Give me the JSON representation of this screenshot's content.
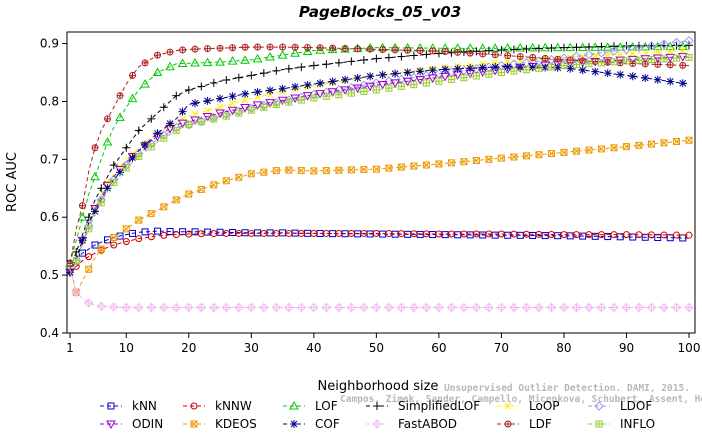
{
  "chart_data": {
    "type": "line",
    "title": "PageBlocks_05_v03",
    "xlabel": "Neighborhood size",
    "ylabel": "ROC AUC",
    "xlim": [
      1,
      100
    ],
    "ylim": [
      0.4,
      0.92
    ],
    "xticks": [
      1,
      10,
      20,
      30,
      40,
      50,
      60,
      70,
      80,
      90,
      100
    ],
    "yticks": [
      0.4,
      0.5,
      0.6,
      0.7,
      0.8,
      0.9
    ],
    "x_anchors": [
      1,
      2,
      3,
      4,
      5,
      6,
      7,
      8,
      10,
      12,
      15,
      18,
      20,
      25,
      30,
      35,
      40,
      50,
      60,
      70,
      80,
      90,
      100
    ],
    "series": [
      {
        "name": "kNN",
        "color": "#0000cc",
        "marker": "square",
        "values": [
          0.52,
          0.53,
          0.538,
          0.545,
          0.552,
          0.557,
          0.561,
          0.565,
          0.57,
          0.574,
          0.576,
          0.575,
          0.575,
          0.574,
          0.573,
          0.573,
          0.572,
          0.571,
          0.57,
          0.569,
          0.568,
          0.566,
          0.564
        ]
      },
      {
        "name": "kNNW",
        "color": "#cc0000",
        "marker": "circle",
        "values": [
          0.505,
          0.515,
          0.525,
          0.532,
          0.538,
          0.543,
          0.548,
          0.552,
          0.558,
          0.563,
          0.568,
          0.57,
          0.571,
          0.572,
          0.572,
          0.572,
          0.572,
          0.572,
          0.571,
          0.571,
          0.57,
          0.57,
          0.569
        ]
      },
      {
        "name": "LOF",
        "color": "#00cc00",
        "marker": "triangle",
        "values": [
          0.52,
          0.56,
          0.6,
          0.64,
          0.67,
          0.7,
          0.73,
          0.755,
          0.79,
          0.82,
          0.85,
          0.865,
          0.866,
          0.868,
          0.872,
          0.88,
          0.888,
          0.893,
          0.892,
          0.892,
          0.893,
          0.894,
          0.895
        ]
      },
      {
        "name": "SimplifiedLOF",
        "color": "#000000",
        "marker": "plus",
        "values": [
          0.51,
          0.54,
          0.57,
          0.6,
          0.63,
          0.65,
          0.67,
          0.69,
          0.72,
          0.75,
          0.78,
          0.81,
          0.82,
          0.835,
          0.845,
          0.855,
          0.862,
          0.874,
          0.883,
          0.889,
          0.893,
          0.896,
          0.897
        ]
      },
      {
        "name": "LoOP",
        "color": "#ffee00",
        "marker": "cross",
        "values": [
          0.505,
          0.53,
          0.56,
          0.59,
          0.615,
          0.64,
          0.66,
          0.675,
          0.7,
          0.72,
          0.745,
          0.765,
          0.775,
          0.79,
          0.805,
          0.817,
          0.827,
          0.845,
          0.858,
          0.868,
          0.876,
          0.882,
          0.888
        ]
      },
      {
        "name": "LDOF",
        "color": "#9999ee",
        "marker": "diamond",
        "values": [
          0.5,
          0.525,
          0.555,
          0.585,
          0.61,
          0.63,
          0.65,
          0.665,
          0.69,
          0.71,
          0.735,
          0.755,
          0.76,
          0.775,
          0.788,
          0.8,
          0.812,
          0.832,
          0.848,
          0.862,
          0.875,
          0.89,
          0.905
        ]
      },
      {
        "name": "ODIN",
        "color": "#9900cc",
        "marker": "triangle-down",
        "values": [
          0.505,
          0.53,
          0.56,
          0.59,
          0.615,
          0.635,
          0.655,
          0.67,
          0.695,
          0.715,
          0.74,
          0.76,
          0.765,
          0.78,
          0.792,
          0.802,
          0.812,
          0.828,
          0.842,
          0.855,
          0.866,
          0.872,
          0.878
        ]
      },
      {
        "name": "KDEOS",
        "color": "#ee9900",
        "marker": "square-x",
        "values": [
          0.515,
          0.47,
          0.49,
          0.51,
          0.53,
          0.545,
          0.555,
          0.565,
          0.58,
          0.595,
          0.612,
          0.63,
          0.64,
          0.66,
          0.675,
          0.682,
          0.68,
          0.683,
          0.692,
          0.702,
          0.712,
          0.722,
          0.733
        ]
      },
      {
        "name": "COF",
        "color": "#000088",
        "marker": "asterisk",
        "values": [
          0.505,
          0.53,
          0.56,
          0.59,
          0.61,
          0.63,
          0.65,
          0.665,
          0.69,
          0.715,
          0.745,
          0.77,
          0.795,
          0.805,
          0.815,
          0.822,
          0.83,
          0.845,
          0.855,
          0.86,
          0.858,
          0.845,
          0.83
        ]
      },
      {
        "name": "FastABOD",
        "color": "#f2b8f2",
        "marker": "diamond-plus",
        "values": [
          0.51,
          0.47,
          0.46,
          0.452,
          0.448,
          0.446,
          0.445,
          0.445,
          0.444,
          0.444,
          0.444,
          0.444,
          0.444,
          0.444,
          0.444,
          0.444,
          0.444,
          0.444,
          0.444,
          0.444,
          0.444,
          0.444,
          0.444
        ]
      },
      {
        "name": "LDF",
        "color": "#aa2222",
        "marker": "circle-plus",
        "values": [
          0.52,
          0.58,
          0.62,
          0.68,
          0.72,
          0.75,
          0.77,
          0.79,
          0.83,
          0.86,
          0.88,
          0.888,
          0.89,
          0.892,
          0.894,
          0.894,
          0.893,
          0.89,
          0.887,
          0.88,
          0.872,
          0.866,
          0.862
        ]
      },
      {
        "name": "INFLO",
        "color": "#99cc33",
        "marker": "square-cross",
        "values": [
          0.5,
          0.525,
          0.552,
          0.58,
          0.605,
          0.625,
          0.645,
          0.66,
          0.685,
          0.705,
          0.73,
          0.75,
          0.76,
          0.772,
          0.785,
          0.797,
          0.806,
          0.82,
          0.835,
          0.85,
          0.862,
          0.87,
          0.876
        ]
      }
    ],
    "legend_order": [
      "kNN",
      "kNNW",
      "LOF",
      "SimplifiedLOF",
      "LoOP",
      "LDOF",
      "ODIN",
      "KDEOS",
      "COF",
      "FastABOD",
      "LDF",
      "INFLO"
    ],
    "legend_placement": "bottom",
    "grid": false
  },
  "watermark": {
    "line1": "Unsupervised Outlier Detection. DAMI, 2015.",
    "line2": "Campos, Zimek, Sander, Campello, Micenkova, Schubert, Assent, Houle"
  }
}
